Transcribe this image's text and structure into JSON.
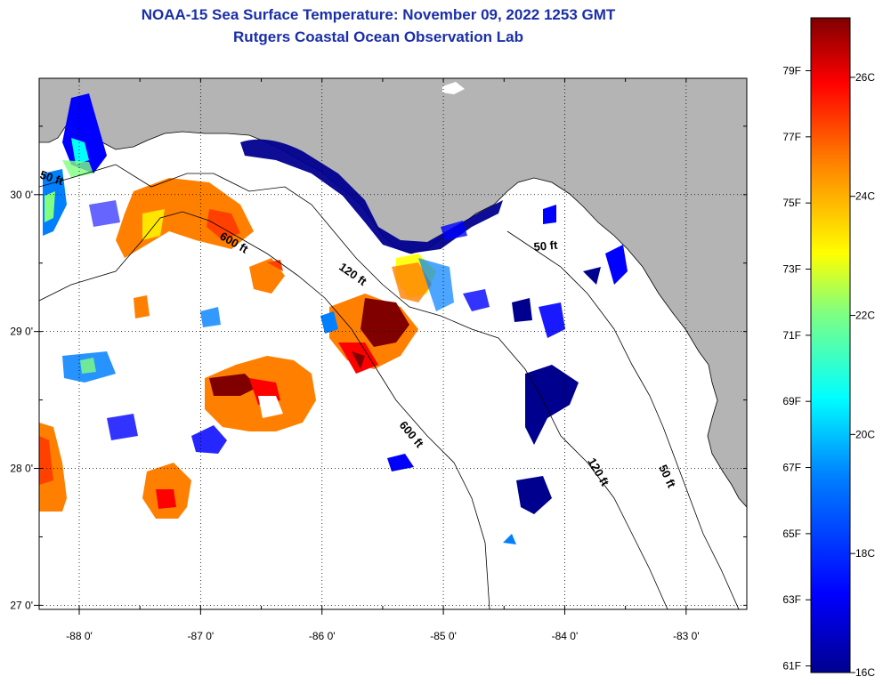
{
  "header": {
    "title": "NOAA-15 Sea Surface Temperature:  November 09, 2022 1253 GMT",
    "subtitle": "Rutgers Coastal Ocean Observation Lab"
  },
  "map": {
    "lon_ticks": [
      {
        "value": -88,
        "label": "-88 0'"
      },
      {
        "value": -87,
        "label": "-87 0'"
      },
      {
        "value": -86,
        "label": "-86 0'"
      },
      {
        "value": -85,
        "label": "-85 0'"
      },
      {
        "value": -84,
        "label": "-84 0'"
      },
      {
        "value": -83,
        "label": "-83 0'"
      }
    ],
    "lat_ticks": [
      {
        "value": 30,
        "label": "30 0'"
      },
      {
        "value": 29,
        "label": "29 0'"
      },
      {
        "value": 28,
        "label": "28 0'"
      },
      {
        "value": 27,
        "label": "27 0'"
      }
    ],
    "lon_range": [
      -88.33,
      -82.5
    ],
    "lat_range": [
      26.97,
      30.85
    ],
    "contour_labels": [
      "50 ft",
      "600 ft",
      "120 ft",
      "600 ft",
      "50 ft",
      "120 ft",
      "50 ft"
    ],
    "land_color": "#b4b4b4",
    "no_data_color": "#ffffff"
  },
  "colorbar": {
    "fahrenheit_labels": [
      "79F",
      "77F",
      "75F",
      "73F",
      "71F",
      "69F",
      "67F",
      "65F",
      "63F",
      "61F"
    ],
    "celsius_labels": [
      "26C",
      "24C",
      "22C",
      "20C",
      "18C",
      "16C"
    ],
    "range_c": [
      16,
      27
    ],
    "colors": [
      "#00008f",
      "#0000ff",
      "#0080ff",
      "#00ffff",
      "#80ff80",
      "#ffff00",
      "#ff8000",
      "#ff0000",
      "#800000"
    ]
  }
}
